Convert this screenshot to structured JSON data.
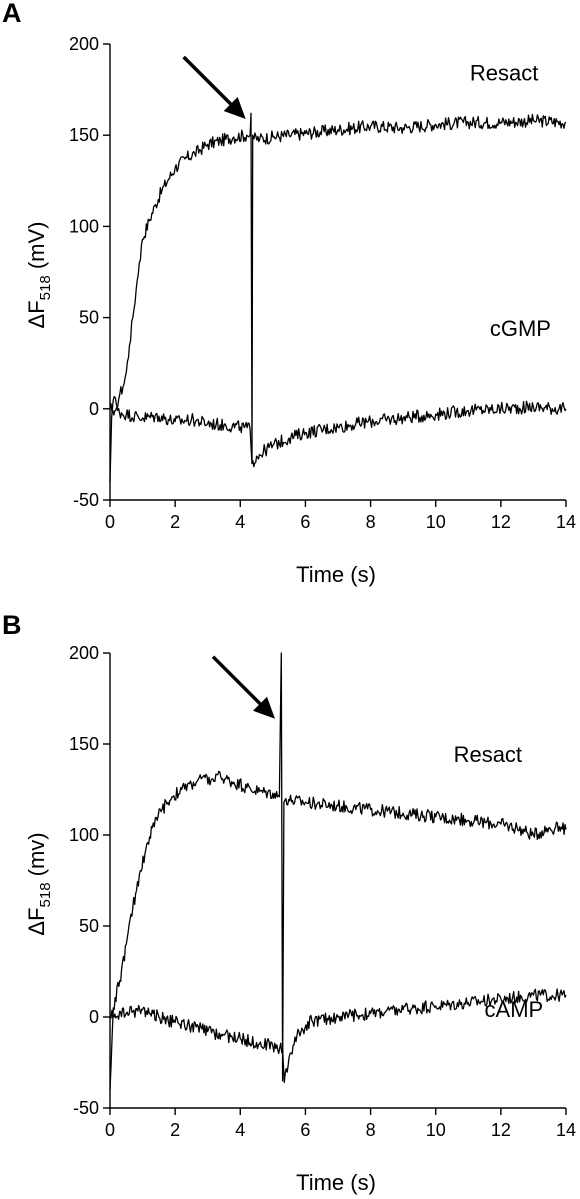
{
  "chart_data": [
    {
      "type": "line",
      "panel_label": "A",
      "xlabel": "Time (s)",
      "ylabel_main": "ΔF",
      "ylabel_sub": "518",
      "ylabel_unit": " (mV)",
      "xlim": [
        0,
        14
      ],
      "ylim": [
        -50,
        200
      ],
      "xticks": [
        0,
        2,
        4,
        6,
        8,
        10,
        12,
        14
      ],
      "yticks": [
        -50,
        0,
        50,
        100,
        150,
        200
      ],
      "arrow_at": {
        "x": 4.35,
        "y": 160
      },
      "series": [
        {
          "name": "Resact",
          "label_anchor": {
            "x": 12.1,
            "y": 180
          },
          "x": [
            0,
            0.05,
            0.1,
            0.2,
            0.3,
            0.4,
            0.5,
            0.6,
            0.7,
            0.8,
            0.9,
            1.0,
            1.2,
            1.4,
            1.6,
            1.8,
            2.0,
            2.3,
            2.6,
            3.0,
            3.4,
            3.8,
            4.2,
            4.3,
            4.33,
            4.36,
            4.38,
            4.42,
            4.6,
            5.0,
            5.5,
            6,
            7,
            8,
            9,
            10,
            11,
            12,
            13,
            14
          ],
          "y": [
            -40,
            -5,
            5,
            2,
            8,
            12,
            20,
            35,
            50,
            65,
            80,
            93,
            103,
            112,
            120,
            126,
            132,
            137,
            140,
            145,
            147,
            149,
            150,
            150,
            162,
            -28,
            150,
            148,
            148,
            149,
            150,
            151,
            153,
            155,
            154,
            156,
            157,
            157,
            158,
            157
          ]
        },
        {
          "name": "cGMP",
          "label_anchor": {
            "x": 12.6,
            "y": 40
          },
          "x": [
            0,
            0.5,
            1.0,
            1.5,
            2.0,
            2.5,
            3.0,
            3.5,
            4.0,
            4.3,
            4.36,
            4.5,
            5.0,
            5.5,
            6,
            7,
            8,
            9,
            10,
            11,
            12,
            13,
            14
          ],
          "y": [
            0,
            -3,
            -5,
            -4,
            -7,
            -6,
            -8,
            -9,
            -10,
            -11,
            -30,
            -26,
            -20,
            -16,
            -13,
            -10,
            -7,
            -5,
            -3,
            -1,
            0,
            1,
            0
          ]
        }
      ]
    },
    {
      "type": "line",
      "panel_label": "B",
      "xlabel": "Time (s)",
      "ylabel_main": "ΔF",
      "ylabel_sub": "518",
      "ylabel_unit": " (mv)",
      "xlim": [
        0,
        14
      ],
      "ylim": [
        -50,
        200
      ],
      "xticks": [
        0,
        2,
        4,
        6,
        8,
        10,
        12,
        14
      ],
      "yticks": [
        -50,
        0,
        50,
        100,
        150,
        200
      ],
      "arrow_at": {
        "x": 5.25,
        "y": 165
      },
      "series": [
        {
          "name": "Resact",
          "label_anchor": {
            "x": 11.6,
            "y": 140
          },
          "x": [
            0,
            0.1,
            0.3,
            0.5,
            0.7,
            0.9,
            1.1,
            1.3,
            1.6,
            1.9,
            2.2,
            2.5,
            2.8,
            3.1,
            3.4,
            3.8,
            4.2,
            4.6,
            5.0,
            5.2,
            5.26,
            5.3,
            5.34,
            5.4,
            5.6,
            6,
            7,
            8,
            9,
            10,
            11,
            12,
            12.5,
            13,
            13.5,
            14
          ],
          "y": [
            -40,
            5,
            20,
            40,
            60,
            78,
            92,
            104,
            114,
            121,
            125,
            128,
            131,
            130,
            132,
            129,
            126,
            124,
            123,
            121,
            200,
            -35,
            118,
            120,
            119,
            118,
            116,
            114,
            112,
            110,
            108,
            106,
            104,
            100,
            104,
            103
          ]
        },
        {
          "name": "cAMP",
          "label_anchor": {
            "x": 12.4,
            "y": 0
          },
          "x": [
            0,
            0.5,
            1.0,
            1.5,
            2.0,
            2.5,
            3.0,
            3.5,
            4.0,
            4.5,
            5.0,
            5.3,
            5.35,
            5.5,
            5.8,
            6.2,
            7,
            8,
            9,
            10,
            11,
            12,
            13,
            14
          ],
          "y": [
            0,
            2,
            4,
            0,
            -3,
            -5,
            -8,
            -10,
            -12,
            -14,
            -16,
            -17,
            -36,
            -22,
            -8,
            -2,
            0,
            2,
            4,
            6,
            8,
            10,
            12,
            12
          ]
        }
      ]
    }
  ]
}
